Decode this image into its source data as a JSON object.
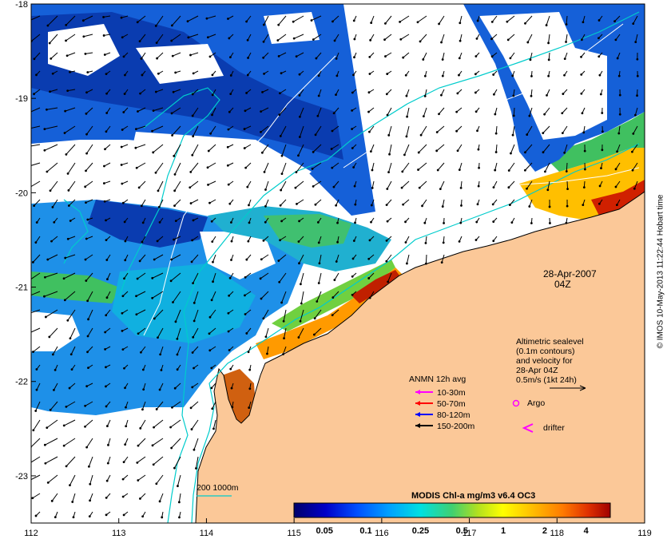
{
  "map": {
    "axes": {
      "x_ticks": [
        "112",
        "113",
        "114",
        "115",
        "116",
        "117",
        "118",
        "119"
      ],
      "y_ticks": [
        "-18",
        "-19",
        "-20",
        "-21",
        "-22",
        "-23"
      ],
      "x_range": [
        112,
        119
      ],
      "y_range": [
        -23.5,
        -18
      ]
    },
    "timestamp": {
      "date": "28-Apr-2007",
      "time": "04Z"
    },
    "sealevel_note": {
      "lines": [
        "Altimetric sealevel",
        "(0.1m contours)",
        "and velocity for",
        "28-Apr 04Z",
        "0.5m/s (1kt 24h)"
      ]
    },
    "anmn_legend": {
      "title": "ANMN 12h avg",
      "items": [
        {
          "label": "10-30m",
          "color": "#ff00ff"
        },
        {
          "label": "50-70m",
          "color": "#ff0000"
        },
        {
          "label": "80-120m",
          "color": "#0000ff"
        },
        {
          "label": "150-200m",
          "color": "#000000"
        }
      ]
    },
    "markers": {
      "argo": {
        "label": "Argo",
        "symbol": "circle",
        "color": "#ff00ff"
      },
      "drifter": {
        "label": "drifter",
        "symbol": "chevron",
        "color": "#ff00ff"
      }
    },
    "isobath_legend": {
      "label": "200  1000m",
      "color": "#00cccc"
    },
    "colorbar": {
      "title": "MODIS Chl-a mg/m3 v6.4 OC3",
      "tick_labels": [
        "0.05",
        "0.1",
        "0.25",
        "0.5",
        "1",
        "2",
        "4"
      ],
      "colors": [
        "#00006b",
        "#0000c8",
        "#0050ff",
        "#00a0ff",
        "#00e0e0",
        "#20d080",
        "#50c850",
        "#b0e020",
        "#ffff00",
        "#ffc000",
        "#ff7a00",
        "#e03000",
        "#a00000"
      ]
    },
    "colors": {
      "land": "#fbc898",
      "coast": "#000000",
      "isobath": "#00cccc",
      "sealevel_contour": "#ffffff"
    },
    "credit": "© IMOS 10-May-2013 11:22:44 Hobart time"
  }
}
